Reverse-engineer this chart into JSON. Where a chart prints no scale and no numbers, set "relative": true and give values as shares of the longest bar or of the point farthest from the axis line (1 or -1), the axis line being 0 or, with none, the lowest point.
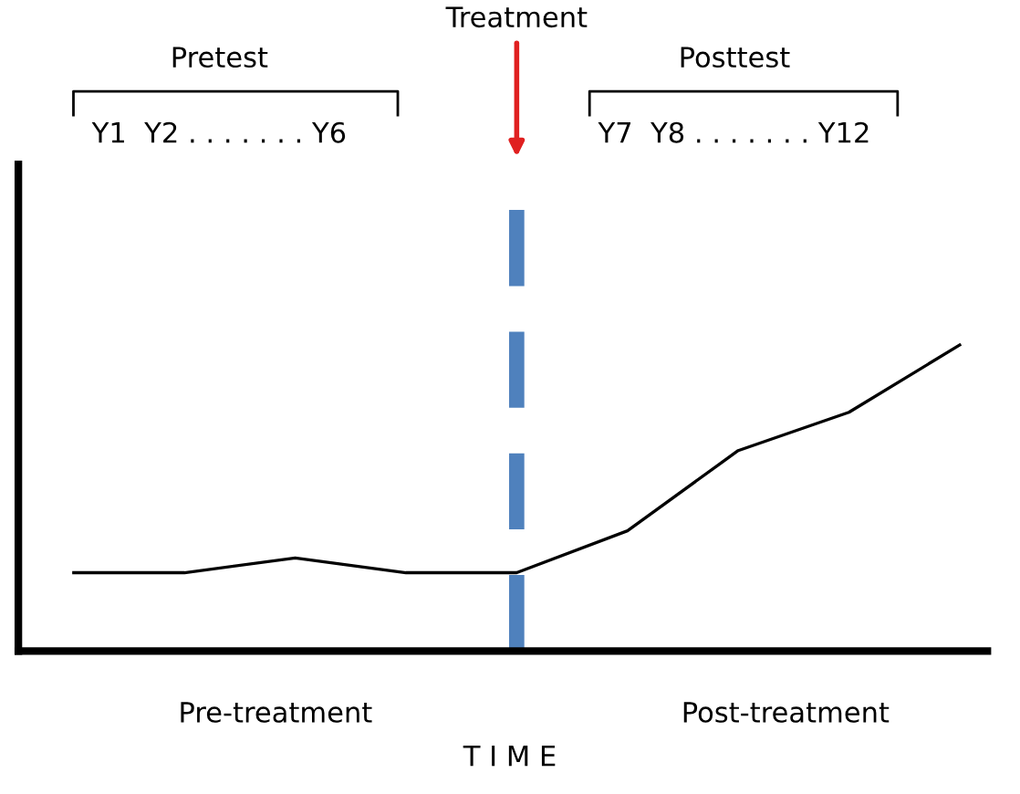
{
  "chart_data": {
    "type": "line",
    "relative": true,
    "xlabel": "T I M E",
    "categories": [
      null,
      null,
      null,
      null,
      null,
      null,
      null,
      null,
      null
    ],
    "series": [
      {
        "color": "#000000",
        "values": [
          0.256,
          0.256,
          0.304,
          0.256,
          0.256,
          0.393,
          0.655,
          0.78,
          1.0
        ]
      }
    ],
    "annotations": [
      "Treatment",
      "Pretest",
      "Y1  Y2 . . . . . . . Y6",
      "Posttest",
      "Y7  Y8 . . . . . . . Y12",
      "Pre-treatment",
      "Post-treatment"
    ],
    "legend": false,
    "marker": "none",
    "line_style": "solid"
  }
}
